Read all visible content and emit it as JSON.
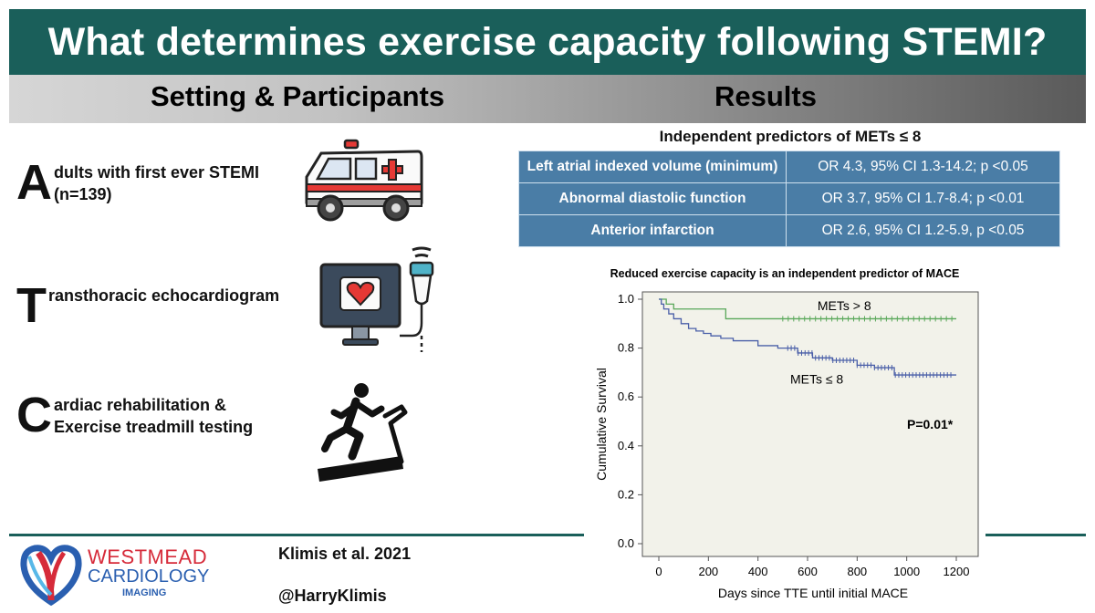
{
  "title": "What determines exercise capacity following STEMI?",
  "sections": {
    "left": "Setting & Participants",
    "right": "Results"
  },
  "participants": [
    {
      "letter": "A",
      "text": "dults with first ever STEMI",
      "text2": "(n=139)"
    },
    {
      "letter": "T",
      "text": "ransthoracic echocardiogram",
      "text2": ""
    },
    {
      "letter": "C",
      "text": "ardiac rehabilitation &",
      "text2": "Exercise treadmill testing"
    }
  ],
  "predictors": {
    "title": "Independent predictors of METs ≤ 8",
    "rows": [
      {
        "label": "Left atrial indexed volume (minimum)",
        "value": "OR 4.3, 95% CI 1.3-14.2; p <0.05"
      },
      {
        "label": "Abnormal diastolic function",
        "value": "OR 3.7, 95% CI 1.7-8.4; p <0.01"
      },
      {
        "label": "Anterior infarction",
        "value": "OR 2.6, 95% CI 1.2-5.9, p <0.05"
      }
    ]
  },
  "footer": {
    "citation": "Klimis et al. 2021",
    "handle": "@HarryKlimis",
    "logo_line1": "WESTMEAD",
    "logo_line2": "CARDIOLOGY",
    "logo_line3": "IMAGING"
  },
  "colors": {
    "banner": "#1a5f5a",
    "table": "#4a7da6",
    "green_series": "#5aa85a",
    "blue_series": "#4a5fa8"
  },
  "chart_data": {
    "type": "line",
    "title": "Reduced exercise capacity is an independent predictor of MACE",
    "xlabel": "Days since TTE until initial MACE",
    "ylabel": "Cumulative Survival",
    "xlim": [
      0,
      1250
    ],
    "ylim": [
      0,
      1.0
    ],
    "xticks": [
      "0",
      "200",
      "400",
      "600",
      "800",
      "1000",
      "1200"
    ],
    "yticks": [
      "0.0",
      "0.2",
      "0.4",
      "0.6",
      "0.8",
      "1.0"
    ],
    "annotation": "P=0.01*",
    "series": [
      {
        "name": "METs > 8",
        "color": "#5aa85a",
        "x": [
          0,
          15,
          30,
          45,
          60,
          130,
          270,
          1200
        ],
        "y": [
          1.0,
          1.0,
          0.98,
          0.98,
          0.96,
          0.96,
          0.92,
          0.92
        ]
      },
      {
        "name": "METs ≤ 8",
        "color": "#4a5fa8",
        "x": [
          0,
          10,
          20,
          40,
          60,
          90,
          120,
          150,
          180,
          210,
          250,
          300,
          400,
          480,
          560,
          620,
          700,
          800,
          870,
          950,
          1200
        ],
        "y": [
          1.0,
          0.98,
          0.96,
          0.94,
          0.92,
          0.9,
          0.88,
          0.87,
          0.86,
          0.85,
          0.84,
          0.83,
          0.81,
          0.8,
          0.78,
          0.76,
          0.75,
          0.73,
          0.72,
          0.69,
          0.69
        ]
      }
    ]
  }
}
